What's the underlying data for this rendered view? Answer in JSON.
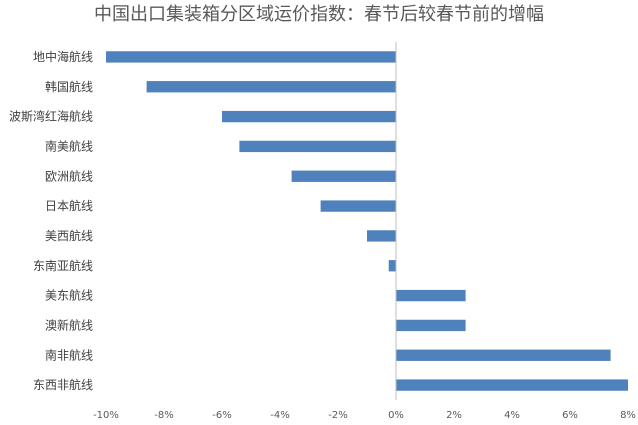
{
  "chart_data": {
    "type": "bar",
    "orientation": "horizontal",
    "title": "中国出口集装箱分区域运价指数：春节后较春节前的增幅",
    "categories": [
      "地中海航线",
      "韩国航线",
      "波斯湾红海航线",
      "南美航线",
      "欧洲航线",
      "日本航线",
      "美西航线",
      "东南亚航线",
      "美东航线",
      "澳新航线",
      "南非航线",
      "东西非航线"
    ],
    "values": [
      -10.0,
      -8.6,
      -6.0,
      -5.4,
      -3.6,
      -2.6,
      -1.0,
      -0.25,
      2.4,
      2.4,
      7.4,
      8.0
    ],
    "unit": "%",
    "xlim": [
      -10,
      8
    ],
    "xticks": [
      -10,
      -8,
      -6,
      -4,
      -2,
      0,
      2,
      4,
      6,
      8
    ],
    "tick_labels": [
      "-10%",
      "-8%",
      "-6%",
      "-4%",
      "-2%",
      "0%",
      "2%",
      "4%",
      "6%",
      "8%"
    ],
    "colors": {
      "bar": "#4F81BD",
      "axis": "#BFBFBF"
    },
    "grid": false,
    "legend": "none"
  }
}
